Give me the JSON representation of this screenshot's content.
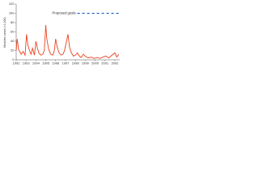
{
  "chart_data": {
    "type": "line",
    "y_label": "Measles cases (×1,000)",
    "xlim": [
      1992,
      2002.5
    ],
    "xticks": [
      1992,
      1993,
      1994,
      1995,
      1996,
      1997,
      1998,
      1999,
      2000,
      2001,
      2002
    ],
    "ylim": [
      0,
      120
    ],
    "yticks": [
      0,
      20,
      40,
      60,
      80,
      100,
      120
    ],
    "series": [
      {
        "name": "Measles cases",
        "color": "#e8431f",
        "x": [
          1992,
          1992.1,
          1992.25,
          1992.5,
          1992.7,
          1992.9,
          1993.05,
          1993.2,
          1993.35,
          1993.5,
          1993.65,
          1993.85,
          1994.0,
          1994.15,
          1994.3,
          1994.5,
          1994.7,
          1994.85,
          1995.0,
          1995.1,
          1995.3,
          1995.5,
          1995.7,
          1995.85,
          1996.0,
          1996.15,
          1996.35,
          1996.55,
          1996.75,
          1996.9,
          1997.05,
          1997.25,
          1997.4,
          1997.6,
          1997.8,
          1998.0,
          1998.2,
          1998.4,
          1998.6,
          1998.8,
          1999.0,
          1999.3,
          1999.6,
          1999.9,
          2000.2,
          2000.5,
          2000.8,
          2001.1,
          2001.4,
          2001.7,
          2002.0,
          2002.2,
          2002.4
        ],
        "values": [
          20,
          45,
          22,
          12,
          18,
          10,
          55,
          30,
          20,
          12,
          25,
          10,
          40,
          25,
          15,
          10,
          12,
          20,
          75,
          45,
          22,
          12,
          10,
          18,
          45,
          28,
          15,
          10,
          12,
          20,
          35,
          55,
          28,
          15,
          8,
          10,
          15,
          8,
          5,
          12,
          8,
          4,
          6,
          3,
          5,
          3,
          6,
          8,
          4,
          10,
          15,
          6,
          12
        ]
      },
      {
        "name": "Proposed goals",
        "color": "#2a5fc9",
        "x": [
          1998.2,
          1999,
          2000,
          2001,
          2002,
          2002.5
        ],
        "values": [
          100,
          100,
          100,
          100,
          100,
          100
        ]
      }
    ]
  }
}
